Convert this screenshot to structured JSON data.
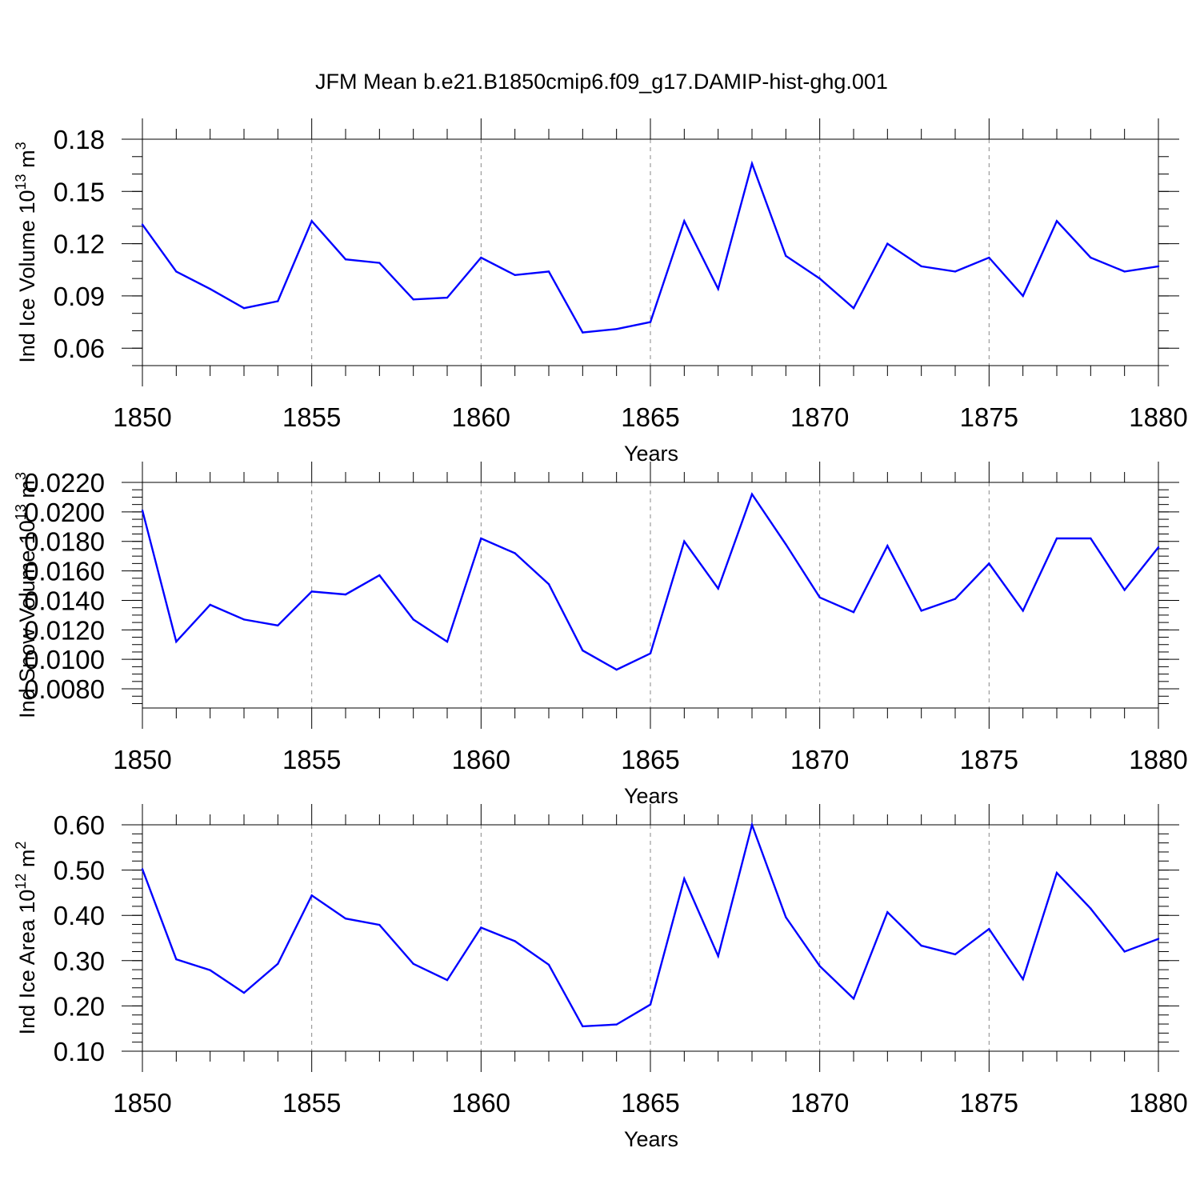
{
  "figure": {
    "title": "JFM Mean b.e21.B1850cmip6.f09_g17.DAMIP-hist-ghg.001",
    "line_color": "#0000ff"
  },
  "chart_data": [
    {
      "type": "line",
      "name": "ice-volume",
      "ylabel": "Ind Ice Volume 10",
      "ylabel_exp": "13",
      "ylabel_unit": "m",
      "ylabel_unit_exp": "3",
      "xlabel": "Years",
      "xlim": [
        1850,
        1880
      ],
      "ylim": [
        0.05,
        0.18
      ],
      "x_ticks": [
        "1850",
        "1855",
        "1860",
        "1865",
        "1870",
        "1875",
        "1880"
      ],
      "y_ticks": [
        0.06,
        0.09,
        0.12,
        0.15,
        0.18
      ],
      "y_tick_labels": [
        "0.06",
        "0.09",
        "0.12",
        "0.15",
        "0.18"
      ],
      "y_minor_step": 0.01,
      "x": [
        1850,
        1851,
        1852,
        1853,
        1854,
        1855,
        1856,
        1857,
        1858,
        1859,
        1860,
        1861,
        1862,
        1863,
        1864,
        1865,
        1866,
        1867,
        1868,
        1869,
        1870,
        1871,
        1872,
        1873,
        1874,
        1875,
        1876,
        1877,
        1878,
        1879,
        1880
      ],
      "values": [
        0.131,
        0.104,
        0.094,
        0.083,
        0.087,
        0.133,
        0.111,
        0.109,
        0.088,
        0.089,
        0.112,
        0.102,
        0.104,
        0.069,
        0.071,
        0.075,
        0.133,
        0.094,
        0.166,
        0.113,
        0.1,
        0.083,
        0.12,
        0.107,
        0.104,
        0.112,
        0.09,
        0.133,
        0.112,
        0.104,
        0.107
      ]
    },
    {
      "type": "line",
      "name": "snow-volume",
      "ylabel": "Ind Snow Volume 10",
      "ylabel_exp": "13",
      "ylabel_unit": "m",
      "ylabel_unit_exp": "3",
      "xlabel": "Years",
      "xlim": [
        1850,
        1880
      ],
      "ylim": [
        0.0067,
        0.022
      ],
      "x_ticks": [
        "1850",
        "1855",
        "1860",
        "1865",
        "1870",
        "1875",
        "1880"
      ],
      "y_ticks": [
        0.008,
        0.01,
        0.012,
        0.014,
        0.016,
        0.018,
        0.02,
        0.022
      ],
      "y_tick_labels": [
        "0.0080",
        "0.0100",
        "0.0120",
        "0.0140",
        "0.0160",
        "0.0180",
        "0.0200",
        "0.0220"
      ],
      "y_minor_step": 0.0005,
      "x": [
        1850,
        1851,
        1852,
        1853,
        1854,
        1855,
        1856,
        1857,
        1858,
        1859,
        1860,
        1861,
        1862,
        1863,
        1864,
        1865,
        1866,
        1867,
        1868,
        1869,
        1870,
        1871,
        1872,
        1873,
        1874,
        1875,
        1876,
        1877,
        1878,
        1879,
        1880
      ],
      "values": [
        0.0201,
        0.0112,
        0.0137,
        0.0127,
        0.0123,
        0.0146,
        0.0144,
        0.0157,
        0.0127,
        0.0112,
        0.0182,
        0.0172,
        0.0151,
        0.0106,
        0.0093,
        0.0104,
        0.018,
        0.0148,
        0.0212,
        0.0178,
        0.0142,
        0.0132,
        0.0177,
        0.0133,
        0.0141,
        0.0165,
        0.0133,
        0.0182,
        0.0182,
        0.0147,
        0.0176
      ]
    },
    {
      "type": "line",
      "name": "ice-area",
      "ylabel": "Ind Ice Area 10",
      "ylabel_exp": "12",
      "ylabel_unit": "m",
      "ylabel_unit_exp": "2",
      "xlabel": "Years",
      "xlim": [
        1850,
        1880
      ],
      "ylim": [
        0.1,
        0.6
      ],
      "x_ticks": [
        "1850",
        "1855",
        "1860",
        "1865",
        "1870",
        "1875",
        "1880"
      ],
      "y_ticks": [
        0.1,
        0.2,
        0.3,
        0.4,
        0.5,
        0.6
      ],
      "y_tick_labels": [
        "0.10",
        "0.20",
        "0.30",
        "0.40",
        "0.50",
        "0.60"
      ],
      "y_minor_step": 0.02,
      "x": [
        1850,
        1851,
        1852,
        1853,
        1854,
        1855,
        1856,
        1857,
        1858,
        1859,
        1860,
        1861,
        1862,
        1863,
        1864,
        1865,
        1866,
        1867,
        1868,
        1869,
        1870,
        1871,
        1872,
        1873,
        1874,
        1875,
        1876,
        1877,
        1878,
        1879,
        1880
      ],
      "values": [
        0.502,
        0.303,
        0.279,
        0.229,
        0.293,
        0.444,
        0.393,
        0.379,
        0.293,
        0.257,
        0.373,
        0.343,
        0.291,
        0.155,
        0.159,
        0.203,
        0.481,
        0.31,
        0.6,
        0.396,
        0.288,
        0.216,
        0.407,
        0.333,
        0.314,
        0.37,
        0.259,
        0.494,
        0.415,
        0.32,
        0.348
      ]
    }
  ]
}
